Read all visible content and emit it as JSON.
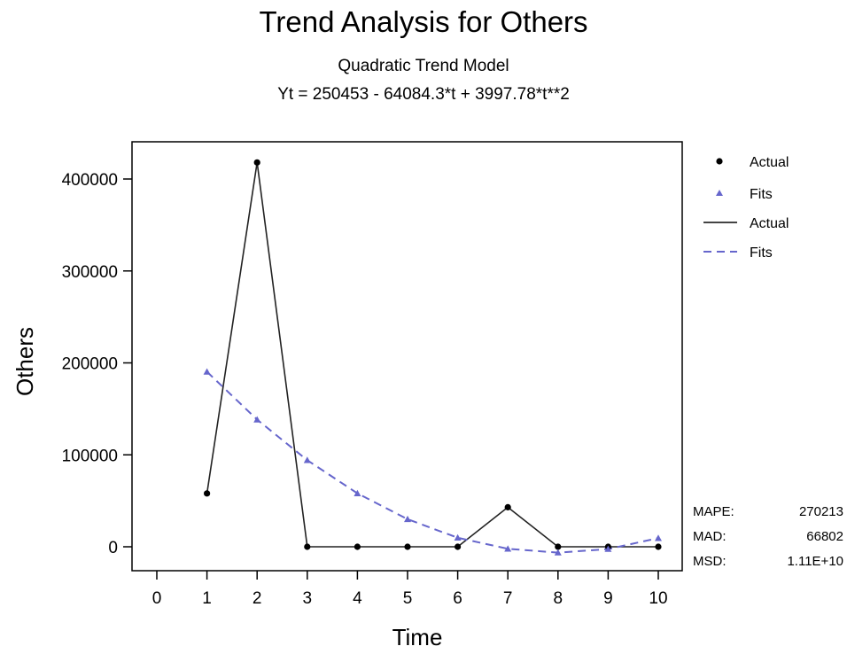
{
  "chart_data": {
    "type": "line",
    "title": "Trend Analysis for Others",
    "subtitle": "Quadratic Trend Model",
    "equation": "Yt = 250453 - 64084.3*t  + 3997.78*t**2",
    "xlabel": "Time",
    "ylabel": "Others",
    "x": [
      1,
      2,
      3,
      4,
      5,
      6,
      7,
      8,
      9,
      10
    ],
    "xlim": [
      0,
      10
    ],
    "ylim": [
      0,
      400000
    ],
    "x_ticks": [
      "0",
      "1",
      "2",
      "3",
      "4",
      "5",
      "6",
      "7",
      "8",
      "9",
      "10"
    ],
    "y_ticks": [
      "0",
      "100000",
      "200000",
      "300000",
      "400000"
    ],
    "series": [
      {
        "name": "Actual",
        "values": [
          58000,
          418000,
          0,
          0,
          0,
          0,
          43000,
          0,
          0,
          0
        ],
        "color": "#000000",
        "marker": "circle",
        "line": "solid"
      },
      {
        "name": "Fits",
        "values": [
          190367,
          138277,
          94182,
          58083,
          29980,
          9872,
          -2240,
          -6356,
          -2476,
          9400
        ],
        "color": "#6666cc",
        "marker": "triangle",
        "line": "dashed"
      }
    ],
    "legend": {
      "position": "right",
      "entries": [
        {
          "label": "Actual",
          "kind": "marker",
          "series": 0
        },
        {
          "label": "Fits",
          "kind": "marker",
          "series": 1
        },
        {
          "label": "Actual",
          "kind": "line",
          "series": 0
        },
        {
          "label": "Fits",
          "kind": "line",
          "series": 1
        }
      ]
    },
    "stats": [
      {
        "label": "MAPE:",
        "value": "270213"
      },
      {
        "label": "MAD:",
        "value": "66802"
      },
      {
        "label": "MSD:",
        "value": "1.11E+10"
      }
    ],
    "grid": false
  }
}
